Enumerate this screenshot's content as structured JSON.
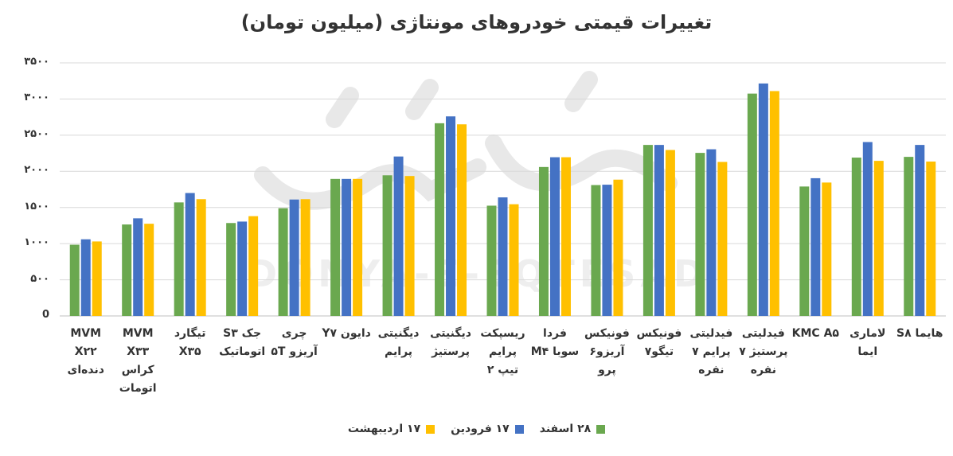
{
  "chart_data": {
    "type": "bar",
    "title": "تغییرات قیمتی خودروهای مونتاژی (میلیون تومان)",
    "xlabel": "",
    "ylabel": "",
    "ylim": [
      0,
      3500
    ],
    "yticks": [
      0,
      500,
      1000,
      1500,
      2000,
      2500,
      3000,
      3500
    ],
    "ytick_labels": [
      "0",
      "۵۰۰",
      "۱۰۰۰",
      "۱۵۰۰",
      "۲۰۰۰",
      "۲۵۰۰",
      "۳۰۰۰",
      "۳۵۰۰"
    ],
    "grid": true,
    "legend_position": "bottom",
    "categories": [
      "MVM X۲۲ دنده‌ای",
      "MVM X۳۳ کراس اتومات",
      "تیگارد X۳۵",
      "جک S۳ اتوماتیک",
      "چری آریزو ۵T",
      "دایون Y۷",
      "دیگنیتی پرایم",
      "دیگنیتی پرستیژ",
      "ریسپکت پرایم تیپ ۲",
      "فردا سوبا M۴",
      "فونیکس آریزو۶ پرو",
      "فونیکس تیگو۷",
      "فیدلیتی پرایم ۷ نفره",
      "فیدلیتی پرستیژ ۷ نفره",
      "KMC A۵",
      "لاماری ایما",
      "هایما S۸"
    ],
    "series": [
      {
        "name": "۲۸ اسفند",
        "color": "#6aa84f",
        "values": [
          985,
          1265,
          1570,
          1285,
          1490,
          1895,
          1945,
          2665,
          1525,
          2060,
          1810,
          2365,
          2255,
          3075,
          1790,
          2190,
          2200
        ]
      },
      {
        "name": "۱۷ فرودین",
        "color": "#4472c4",
        "values": [
          1060,
          1350,
          1700,
          1305,
          1610,
          1895,
          2205,
          2760,
          1640,
          2195,
          1815,
          2365,
          2305,
          3215,
          1905,
          2405,
          2365
        ]
      },
      {
        "name": "۱۷ اردیبهشت",
        "color": "#ffc000",
        "values": [
          1030,
          1275,
          1615,
          1380,
          1615,
          1895,
          1935,
          2650,
          1545,
          2195,
          1885,
          2295,
          2130,
          3110,
          1845,
          2145,
          2135
        ]
      }
    ]
  }
}
